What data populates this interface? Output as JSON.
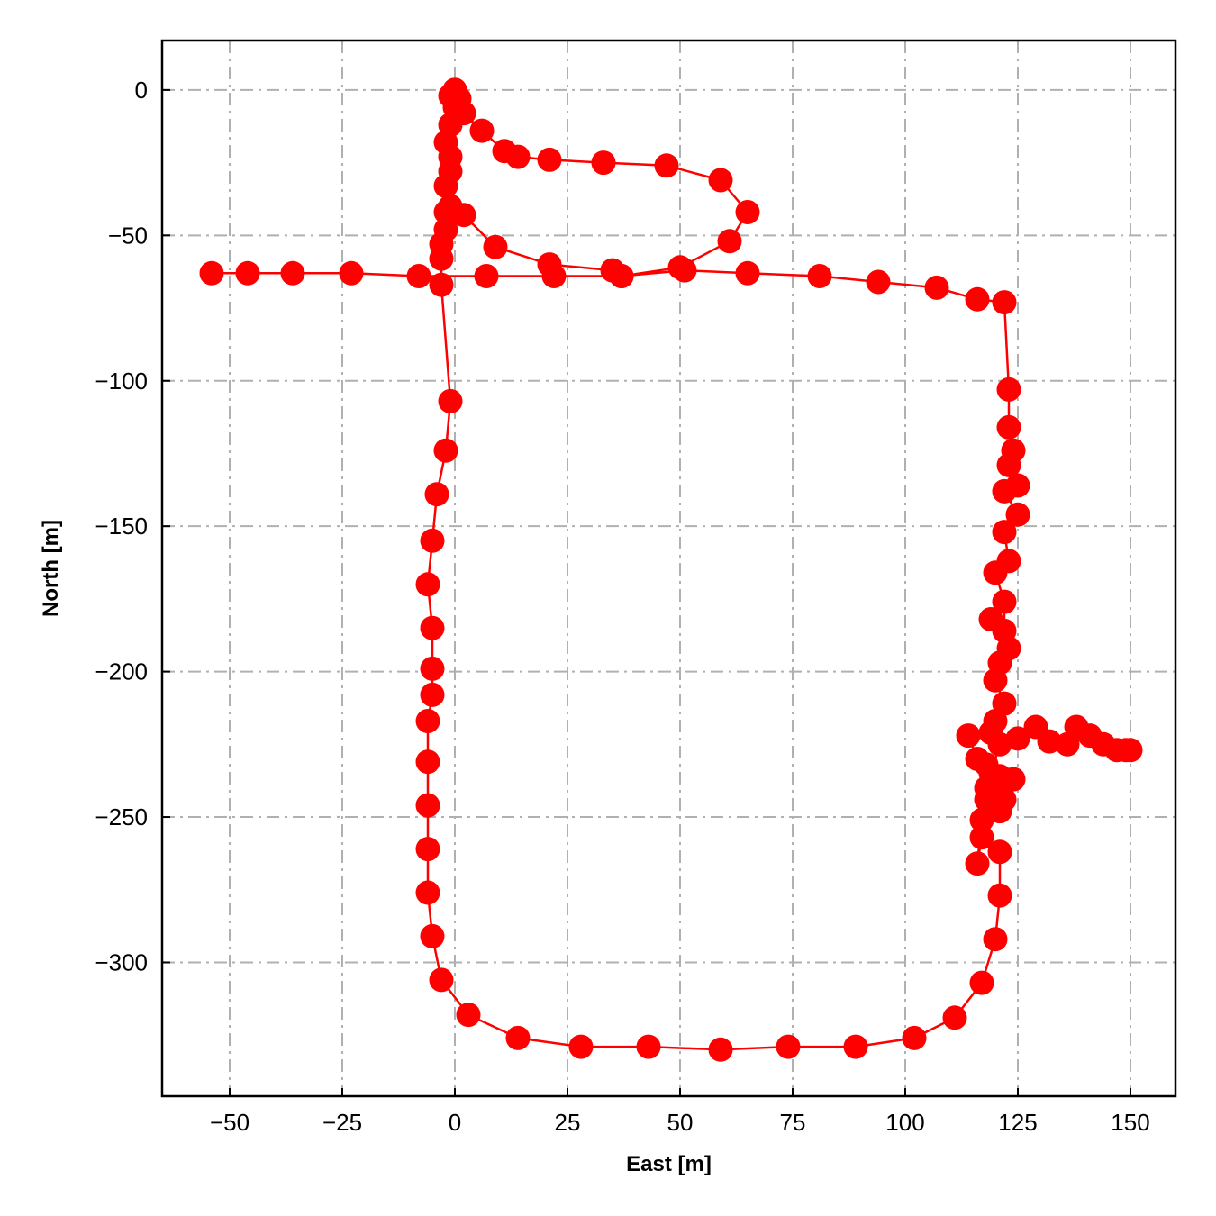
{
  "chart_data": {
    "type": "line",
    "title": "",
    "xlabel": "East [m]",
    "ylabel": "North [m]",
    "xlim": [
      -65,
      160
    ],
    "ylim": [
      -346,
      17
    ],
    "xticks": [
      -50,
      -25,
      0,
      25,
      50,
      75,
      100,
      125,
      150
    ],
    "yticks": [
      0,
      -50,
      -100,
      -150,
      -200,
      -250,
      -300
    ],
    "xtick_labels": [
      "−50",
      "−25",
      "0",
      "25",
      "50",
      "75",
      "100",
      "125",
      "150"
    ],
    "ytick_labels": [
      "0",
      "−50",
      "−100",
      "−150",
      "−200",
      "−250",
      "−300"
    ],
    "grid": true,
    "grid_style": "dash-dot",
    "colors": {
      "series": "#ff0000",
      "grid": "#b0b0b0",
      "frame": "#000000"
    },
    "series": [
      {
        "marker": "circle",
        "points": [
          [
            0,
            0
          ],
          [
            1,
            -3
          ],
          [
            2,
            -8
          ],
          [
            6,
            -14
          ],
          [
            11,
            -21
          ],
          [
            14,
            -23
          ],
          [
            21,
            -24
          ],
          [
            33,
            -25
          ],
          [
            47,
            -26
          ],
          [
            59,
            -31
          ],
          [
            65,
            -42
          ],
          [
            61,
            -52
          ],
          [
            50,
            -61
          ],
          [
            37,
            -64
          ],
          [
            35,
            -62
          ],
          [
            21,
            -60
          ],
          [
            9,
            -54
          ],
          [
            2,
            -43
          ],
          [
            -1,
            -40
          ],
          [
            -2,
            -33
          ],
          [
            -1,
            -28
          ],
          [
            -1,
            -23
          ],
          [
            -2,
            -18
          ],
          [
            -1,
            -12
          ],
          [
            0,
            -6
          ],
          [
            -1,
            -2
          ],
          [
            0,
            0
          ],
          [
            -2,
            -42
          ],
          [
            -2,
            -48
          ],
          [
            -3,
            -53
          ],
          [
            -3,
            -58
          ],
          [
            -3,
            -67
          ],
          [
            -1,
            -107
          ],
          [
            -2,
            -124
          ],
          [
            -4,
            -139
          ],
          [
            -5,
            -155
          ],
          [
            -6,
            -170
          ],
          [
            -5,
            -185
          ],
          [
            -5,
            -199
          ],
          [
            -5,
            -208
          ],
          [
            -6,
            -217
          ],
          [
            -6,
            -231
          ],
          [
            -6,
            -246
          ],
          [
            -6,
            -261
          ],
          [
            -6,
            -276
          ],
          [
            -5,
            -291
          ],
          [
            -3,
            -306
          ],
          [
            3,
            -318
          ],
          [
            14,
            -326
          ],
          [
            28,
            -329
          ],
          [
            43,
            -329
          ],
          [
            59,
            -330
          ],
          [
            74,
            -329
          ],
          [
            89,
            -329
          ],
          [
            102,
            -326
          ],
          [
            111,
            -319
          ],
          [
            117,
            -307
          ],
          [
            120,
            -292
          ],
          [
            121,
            -277
          ],
          [
            121,
            -262
          ],
          [
            117,
            -257
          ],
          [
            116,
            -266
          ],
          [
            117,
            -251
          ],
          [
            118,
            -240
          ],
          [
            116,
            -230
          ],
          [
            114,
            -222
          ],
          [
            119,
            -221
          ],
          [
            120,
            -217
          ],
          [
            122,
            -211
          ],
          [
            120,
            -203
          ],
          [
            121,
            -197
          ],
          [
            123,
            -192
          ],
          [
            119,
            -182
          ],
          [
            122,
            -186
          ],
          [
            122,
            -176
          ],
          [
            120,
            -166
          ],
          [
            123,
            -162
          ],
          [
            122,
            -152
          ],
          [
            125,
            -146
          ],
          [
            122,
            -138
          ],
          [
            125,
            -136
          ],
          [
            123,
            -129
          ],
          [
            124,
            -124
          ],
          [
            123,
            -116
          ],
          [
            123,
            -103
          ],
          [
            122,
            -73
          ],
          [
            116,
            -72
          ],
          [
            107,
            -68
          ],
          [
            94,
            -66
          ],
          [
            81,
            -64
          ],
          [
            65,
            -63
          ],
          [
            51,
            -62
          ],
          [
            37,
            -64
          ],
          [
            22,
            -64
          ],
          [
            7,
            -64
          ],
          [
            -8,
            -64
          ],
          [
            -23,
            -63
          ],
          [
            -36,
            -63
          ],
          [
            -46,
            -63
          ],
          [
            -54,
            -63
          ]
        ]
      },
      {
        "marker": "circle",
        "points": [
          [
            118,
            -232
          ],
          [
            121,
            -236
          ],
          [
            124,
            -237
          ],
          [
            120,
            -242
          ],
          [
            118,
            -244
          ],
          [
            121,
            -248
          ],
          [
            122,
            -244
          ],
          [
            119,
            -235
          ],
          [
            121,
            -225
          ],
          [
            125,
            -223
          ],
          [
            129,
            -219
          ],
          [
            132,
            -224
          ],
          [
            136,
            -225
          ],
          [
            138,
            -219
          ],
          [
            141,
            -222
          ],
          [
            144,
            -225
          ],
          [
            147,
            -227
          ],
          [
            149,
            -227
          ],
          [
            150,
            -227
          ]
        ]
      }
    ]
  }
}
